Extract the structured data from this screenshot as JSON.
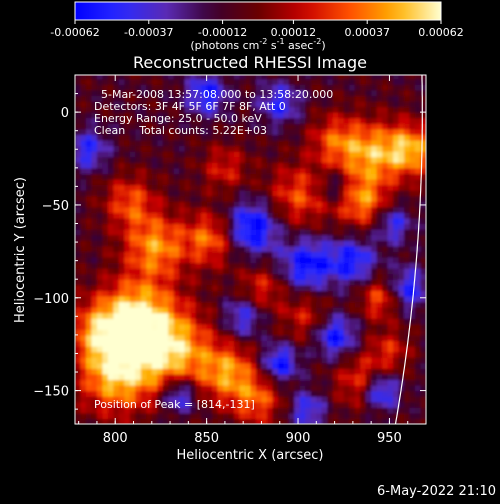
{
  "colorbar": {
    "tick_labels": [
      "-0.00062",
      "-0.00037",
      "-0.00012",
      "0.00012",
      "0.00037",
      "0.00062"
    ],
    "tick_values": [
      -0.00062,
      -0.00037,
      -0.00012,
      0.00012,
      0.00037,
      0.00062
    ],
    "range": [
      -0.00062,
      0.00062
    ],
    "unit_label_parts": {
      "prefix": "(photons cm",
      "exp1": "-2",
      "mid1": " s",
      "exp2": "-1",
      "mid2": " asec",
      "exp3": "-2",
      "suffix": ")"
    },
    "colormap": "rhessi",
    "color_stops": [
      "#0000ff",
      "#2a2aff",
      "#5a2ab4",
      "#3a0030",
      "#6a0000",
      "#c80000",
      "#ff5000",
      "#ffb000",
      "#ffffd0"
    ]
  },
  "chart_data": {
    "type": "heatmap",
    "title": "Reconstructed RHESSI Image",
    "xlabel": "Heliocentric X (arcsec)",
    "ylabel": "Heliocentric Y (arcsec)",
    "xlim": [
      778,
      970
    ],
    "ylim": [
      -168,
      20
    ],
    "x_ticks": [
      800,
      850,
      900,
      950
    ],
    "x_tick_labels": [
      "800",
      "850",
      "900",
      "950"
    ],
    "y_ticks": [
      0,
      -50,
      -100,
      -150
    ],
    "y_tick_labels": [
      "0",
      "−50",
      "−100",
      "−150"
    ],
    "info_lines": [
      "5-Mar-2008 13:57:08.000 to 13:58:20.000",
      "Detectors: 3F 4F 5F 6F 7F 8F, Att 0",
      "Energy Range: 25.0 - 50.0 keV",
      "Clean    Total counts: 5.22E+03"
    ],
    "peak_label": "Position of Peak = [814,-131]",
    "peak_position": [
      814,
      -131
    ],
    "limb_visible": true,
    "grid": false,
    "hot_spots": [
      {
        "x": 830,
        "y": -128,
        "v": 1.0,
        "r": 16
      },
      {
        "x": 800,
        "y": -142,
        "v": 0.9,
        "r": 14
      },
      {
        "x": 812,
        "y": -108,
        "v": 0.85,
        "r": 14
      },
      {
        "x": 792,
        "y": -118,
        "v": 0.75,
        "r": 12
      },
      {
        "x": 822,
        "y": -72,
        "v": 0.8,
        "r": 12
      },
      {
        "x": 852,
        "y": -68,
        "v": 0.7,
        "r": 10
      },
      {
        "x": 808,
        "y": -48,
        "v": 0.6,
        "r": 10
      },
      {
        "x": 862,
        "y": -140,
        "v": 0.75,
        "r": 11
      },
      {
        "x": 878,
        "y": -155,
        "v": 0.6,
        "r": 10
      },
      {
        "x": 900,
        "y": -45,
        "v": 0.6,
        "r": 12
      },
      {
        "x": 940,
        "y": -22,
        "v": 0.8,
        "r": 12
      },
      {
        "x": 935,
        "y": -48,
        "v": 0.75,
        "r": 10
      },
      {
        "x": 962,
        "y": -20,
        "v": 0.85,
        "r": 10
      },
      {
        "x": 920,
        "y": -15,
        "v": 0.55,
        "r": 10
      },
      {
        "x": 935,
        "y": -145,
        "v": 0.6,
        "r": 10
      },
      {
        "x": 945,
        "y": -100,
        "v": 0.65,
        "r": 8
      },
      {
        "x": 950,
        "y": -128,
        "v": 0.45,
        "r": 8
      },
      {
        "x": 905,
        "y": -110,
        "v": 0.45,
        "r": 10
      },
      {
        "x": 880,
        "y": -95,
        "v": 0.5,
        "r": 9
      },
      {
        "x": 860,
        "y": -30,
        "v": 0.45,
        "r": 9
      }
    ],
    "cold_spots": [
      {
        "x": 835,
        "y": -152,
        "v": -0.8,
        "r": 7
      },
      {
        "x": 890,
        "y": -135,
        "v": -0.8,
        "r": 7
      },
      {
        "x": 875,
        "y": -62,
        "v": -0.9,
        "r": 10
      },
      {
        "x": 905,
        "y": -82,
        "v": -0.8,
        "r": 10
      },
      {
        "x": 930,
        "y": -80,
        "v": -0.7,
        "r": 9
      },
      {
        "x": 960,
        "y": -95,
        "v": -0.7,
        "r": 8
      },
      {
        "x": 945,
        "y": -150,
        "v": -0.9,
        "r": 7
      },
      {
        "x": 850,
        "y": 10,
        "v": -0.7,
        "r": 8
      },
      {
        "x": 890,
        "y": 5,
        "v": -0.6,
        "r": 8
      },
      {
        "x": 920,
        "y": -120,
        "v": -0.8,
        "r": 8
      },
      {
        "x": 870,
        "y": -110,
        "v": -0.6,
        "r": 8
      },
      {
        "x": 785,
        "y": -20,
        "v": -0.6,
        "r": 8
      },
      {
        "x": 952,
        "y": -60,
        "v": -0.6,
        "r": 7
      },
      {
        "x": 905,
        "y": -160,
        "v": -0.6,
        "r": 7
      },
      {
        "x": 920,
        "y": -40,
        "v": -0.5,
        "r": 6
      }
    ]
  },
  "footer": {
    "date_stamp": "6-May-2022 21:10"
  }
}
